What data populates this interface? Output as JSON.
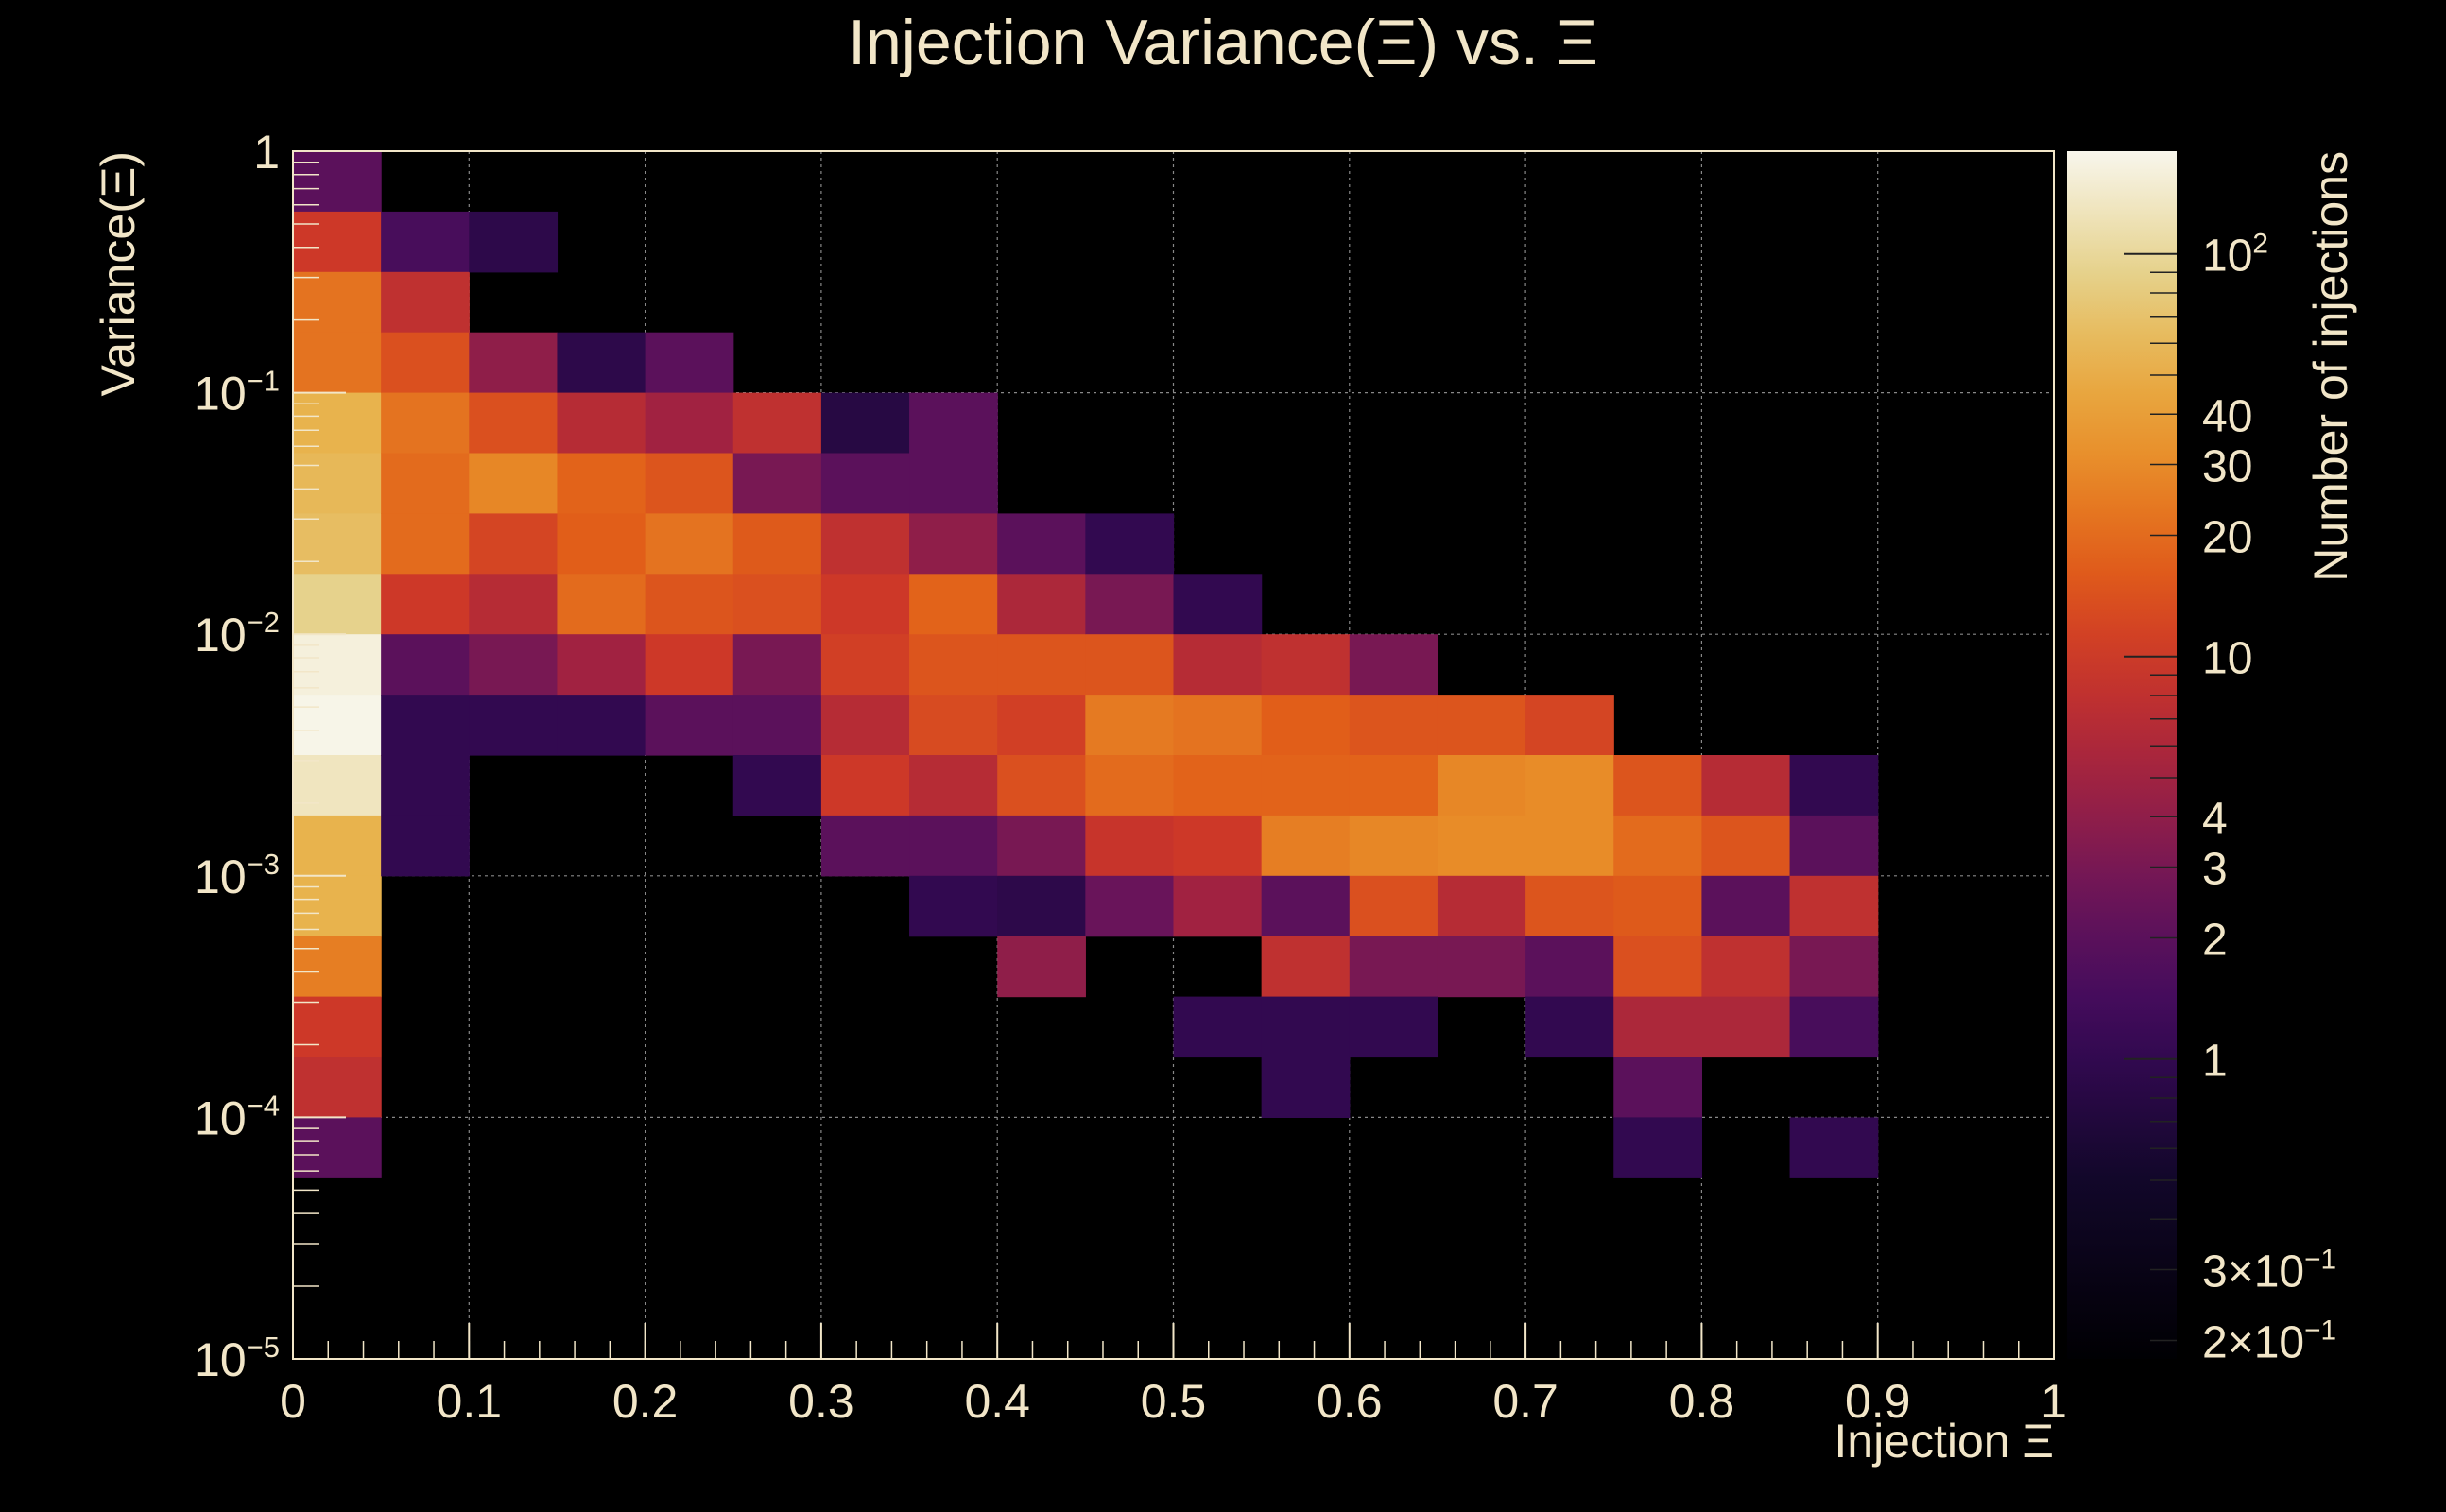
{
  "chart_data": {
    "type": "heatmap",
    "title": "Injection Variance(Ξ) vs. Ξ",
    "xlabel": "Injection Ξ",
    "ylabel": "Variance(Ξ)",
    "colorbar_label": "Number of injections",
    "x_range": [
      0,
      1
    ],
    "x_bin_width": 0.05,
    "y_scale": "log",
    "y_range_log10": [
      -5,
      0
    ],
    "y_bin_width_log10": 0.25,
    "grid": true,
    "x_ticks": [
      {
        "value": 0,
        "label": "0"
      },
      {
        "value": 0.1,
        "label": "0.1"
      },
      {
        "value": 0.2,
        "label": "0.2"
      },
      {
        "value": 0.3,
        "label": "0.3"
      },
      {
        "value": 0.4,
        "label": "0.4"
      },
      {
        "value": 0.5,
        "label": "0.5"
      },
      {
        "value": 0.6,
        "label": "0.6"
      },
      {
        "value": 0.7,
        "label": "0.7"
      },
      {
        "value": 0.8,
        "label": "0.8"
      },
      {
        "value": 0.9,
        "label": "0.9"
      },
      {
        "value": 1,
        "label": "1"
      }
    ],
    "y_ticks": [
      {
        "log10": 0,
        "base": "1",
        "exp": ""
      },
      {
        "log10": -1,
        "base": "10",
        "exp": "−1"
      },
      {
        "log10": -2,
        "base": "10",
        "exp": "−2"
      },
      {
        "log10": -3,
        "base": "10",
        "exp": "−3"
      },
      {
        "log10": -4,
        "base": "10",
        "exp": "−4"
      },
      {
        "log10": -5,
        "base": "10",
        "exp": "−5"
      }
    ],
    "colorbar_range": [
      0.18,
      180
    ],
    "colorbar_ticks": [
      {
        "value": 100,
        "base": "10",
        "exp": "2"
      },
      {
        "value": 40,
        "base": "40",
        "exp": ""
      },
      {
        "value": 30,
        "base": "30",
        "exp": ""
      },
      {
        "value": 20,
        "base": "20",
        "exp": ""
      },
      {
        "value": 10,
        "base": "10",
        "exp": ""
      },
      {
        "value": 4,
        "base": "4",
        "exp": ""
      },
      {
        "value": 3,
        "base": "3",
        "exp": ""
      },
      {
        "value": 2,
        "base": "2",
        "exp": ""
      },
      {
        "value": 1,
        "base": "1",
        "exp": ""
      },
      {
        "value": 0.3,
        "base": "3×10",
        "exp": "−1"
      },
      {
        "value": 0.2,
        "base": "2×10",
        "exp": "−1"
      }
    ],
    "cells": [
      {
        "x": 0,
        "y": 15,
        "v": 2
      },
      {
        "x": 0,
        "y": 14,
        "v": 10
      },
      {
        "x": 0,
        "y": 13,
        "v": 22
      },
      {
        "x": 0,
        "y": 12,
        "v": 22
      },
      {
        "x": 0,
        "y": 11,
        "v": 55
      },
      {
        "x": 0,
        "y": 10,
        "v": 60
      },
      {
        "x": 0,
        "y": 9,
        "v": 65
      },
      {
        "x": 0,
        "y": 8,
        "v": 90
      },
      {
        "x": 0,
        "y": 7,
        "v": 160
      },
      {
        "x": 0,
        "y": 6,
        "v": 175
      },
      {
        "x": 0,
        "y": 5,
        "v": 130
      },
      {
        "x": 0,
        "y": 4,
        "v": 55
      },
      {
        "x": 0,
        "y": 3,
        "v": 55
      },
      {
        "x": 0,
        "y": 2,
        "v": 25
      },
      {
        "x": 0,
        "y": 1,
        "v": 10
      },
      {
        "x": 0,
        "y": 0,
        "v": 8
      },
      {
        "x": 0,
        "y": -1,
        "v": 2
      },
      {
        "x": 1,
        "y": 14,
        "v": 1.5
      },
      {
        "x": 1,
        "y": 13,
        "v": 8
      },
      {
        "x": 1,
        "y": 12,
        "v": 14
      },
      {
        "x": 1,
        "y": 11,
        "v": 22
      },
      {
        "x": 1,
        "y": 10,
        "v": 20
      },
      {
        "x": 1,
        "y": 9,
        "v": 20
      },
      {
        "x": 1,
        "y": 8,
        "v": 10
      },
      {
        "x": 1,
        "y": 7,
        "v": 2
      },
      {
        "x": 1,
        "y": 6,
        "v": 1
      },
      {
        "x": 1,
        "y": 5,
        "v": 1
      },
      {
        "x": 1,
        "y": 4,
        "v": 1
      },
      {
        "x": 2,
        "y": 14,
        "v": 0.9
      },
      {
        "x": 2,
        "y": 12,
        "v": 4
      },
      {
        "x": 2,
        "y": 11,
        "v": 14
      },
      {
        "x": 2,
        "y": 10,
        "v": 28
      },
      {
        "x": 2,
        "y": 9,
        "v": 12
      },
      {
        "x": 2,
        "y": 8,
        "v": 7
      },
      {
        "x": 2,
        "y": 7,
        "v": 3
      },
      {
        "x": 2,
        "y": 6,
        "v": 1
      },
      {
        "x": 3,
        "y": 12,
        "v": 0.9
      },
      {
        "x": 3,
        "y": 11,
        "v": 7
      },
      {
        "x": 3,
        "y": 10,
        "v": 18
      },
      {
        "x": 3,
        "y": 9,
        "v": 17
      },
      {
        "x": 3,
        "y": 8,
        "v": 20
      },
      {
        "x": 3,
        "y": 7,
        "v": 5
      },
      {
        "x": 3,
        "y": 6,
        "v": 1
      },
      {
        "x": 4,
        "y": 12,
        "v": 2
      },
      {
        "x": 4,
        "y": 11,
        "v": 5
      },
      {
        "x": 4,
        "y": 10,
        "v": 15
      },
      {
        "x": 4,
        "y": 9,
        "v": 22
      },
      {
        "x": 4,
        "y": 8,
        "v": 15
      },
      {
        "x": 4,
        "y": 7,
        "v": 10
      },
      {
        "x": 4,
        "y": 6,
        "v": 2
      },
      {
        "x": 5,
        "y": 11,
        "v": 8
      },
      {
        "x": 5,
        "y": 10,
        "v": 3
      },
      {
        "x": 5,
        "y": 9,
        "v": 16
      },
      {
        "x": 5,
        "y": 8,
        "v": 14
      },
      {
        "x": 5,
        "y": 7,
        "v": 3
      },
      {
        "x": 5,
        "y": 6,
        "v": 2
      },
      {
        "x": 5,
        "y": 5,
        "v": 1
      },
      {
        "x": 6,
        "y": 11,
        "v": 0.8
      },
      {
        "x": 6,
        "y": 10,
        "v": 2
      },
      {
        "x": 6,
        "y": 9,
        "v": 8
      },
      {
        "x": 6,
        "y": 8,
        "v": 10
      },
      {
        "x": 6,
        "y": 7,
        "v": 11
      },
      {
        "x": 6,
        "y": 6,
        "v": 7
      },
      {
        "x": 6,
        "y": 5,
        "v": 10
      },
      {
        "x": 6,
        "y": 4,
        "v": 2
      },
      {
        "x": 7,
        "y": 11,
        "v": 2
      },
      {
        "x": 7,
        "y": 10,
        "v": 2
      },
      {
        "x": 7,
        "y": 9,
        "v": 4
      },
      {
        "x": 7,
        "y": 8,
        "v": 18
      },
      {
        "x": 7,
        "y": 7,
        "v": 15
      },
      {
        "x": 7,
        "y": 6,
        "v": 13
      },
      {
        "x": 7,
        "y": 5,
        "v": 7
      },
      {
        "x": 7,
        "y": 4,
        "v": 2
      },
      {
        "x": 7,
        "y": 3,
        "v": 1
      },
      {
        "x": 8,
        "y": 9,
        "v": 2
      },
      {
        "x": 8,
        "y": 8,
        "v": 6
      },
      {
        "x": 8,
        "y": 7,
        "v": 15
      },
      {
        "x": 8,
        "y": 6,
        "v": 11
      },
      {
        "x": 8,
        "y": 5,
        "v": 14
      },
      {
        "x": 8,
        "y": 4,
        "v": 3
      },
      {
        "x": 8,
        "y": 3,
        "v": 0.9
      },
      {
        "x": 8,
        "y": 2,
        "v": 4
      },
      {
        "x": 9,
        "y": 9,
        "v": 1
      },
      {
        "x": 9,
        "y": 8,
        "v": 3
      },
      {
        "x": 9,
        "y": 7,
        "v": 15
      },
      {
        "x": 9,
        "y": 6,
        "v": 24
      },
      {
        "x": 9,
        "y": 5,
        "v": 20
      },
      {
        "x": 9,
        "y": 4,
        "v": 9
      },
      {
        "x": 9,
        "y": 3,
        "v": 2.5
      },
      {
        "x": 10,
        "y": 8,
        "v": 1
      },
      {
        "x": 10,
        "y": 7,
        "v": 7
      },
      {
        "x": 10,
        "y": 6,
        "v": 22
      },
      {
        "x": 10,
        "y": 5,
        "v": 18
      },
      {
        "x": 10,
        "y": 4,
        "v": 10
      },
      {
        "x": 10,
        "y": 3,
        "v": 5
      },
      {
        "x": 10,
        "y": 1,
        "v": 1
      },
      {
        "x": 11,
        "y": 7,
        "v": 8
      },
      {
        "x": 11,
        "y": 6,
        "v": 17
      },
      {
        "x": 11,
        "y": 5,
        "v": 18
      },
      {
        "x": 11,
        "y": 4,
        "v": 25
      },
      {
        "x": 11,
        "y": 3,
        "v": 2
      },
      {
        "x": 11,
        "y": 2,
        "v": 8
      },
      {
        "x": 11,
        "y": 1,
        "v": 1
      },
      {
        "x": 11,
        "y": 0,
        "v": 1
      },
      {
        "x": 12,
        "y": 7,
        "v": 3
      },
      {
        "x": 12,
        "y": 6,
        "v": 15
      },
      {
        "x": 12,
        "y": 5,
        "v": 18
      },
      {
        "x": 12,
        "y": 4,
        "v": 28
      },
      {
        "x": 12,
        "y": 3,
        "v": 14
      },
      {
        "x": 12,
        "y": 2,
        "v": 3
      },
      {
        "x": 12,
        "y": 1,
        "v": 1
      },
      {
        "x": 13,
        "y": 6,
        "v": 15
      },
      {
        "x": 13,
        "y": 5,
        "v": 28
      },
      {
        "x": 13,
        "y": 4,
        "v": 30
      },
      {
        "x": 13,
        "y": 3,
        "v": 7
      },
      {
        "x": 13,
        "y": 2,
        "v": 3
      },
      {
        "x": 14,
        "y": 6,
        "v": 12
      },
      {
        "x": 14,
        "y": 5,
        "v": 30
      },
      {
        "x": 14,
        "y": 4,
        "v": 30
      },
      {
        "x": 14,
        "y": 3,
        "v": 15
      },
      {
        "x": 14,
        "y": 2,
        "v": 2
      },
      {
        "x": 14,
        "y": 1,
        "v": 1
      },
      {
        "x": 15,
        "y": 5,
        "v": 15
      },
      {
        "x": 15,
        "y": 4,
        "v": 20
      },
      {
        "x": 15,
        "y": 3,
        "v": 16
      },
      {
        "x": 15,
        "y": 2,
        "v": 14
      },
      {
        "x": 15,
        "y": 1,
        "v": 6
      },
      {
        "x": 15,
        "y": 0,
        "v": 2
      },
      {
        "x": 15,
        "y": -1,
        "v": 1
      },
      {
        "x": 16,
        "y": 5,
        "v": 7
      },
      {
        "x": 16,
        "y": 4,
        "v": 15
      },
      {
        "x": 16,
        "y": 3,
        "v": 2
      },
      {
        "x": 16,
        "y": 2,
        "v": 8
      },
      {
        "x": 16,
        "y": 1,
        "v": 6
      },
      {
        "x": 17,
        "y": 5,
        "v": 1
      },
      {
        "x": 17,
        "y": 4,
        "v": 2
      },
      {
        "x": 17,
        "y": 3,
        "v": 8
      },
      {
        "x": 17,
        "y": 2,
        "v": 3
      },
      {
        "x": 17,
        "y": 1,
        "v": 1.5
      },
      {
        "x": 17,
        "y": -1,
        "v": 1
      }
    ]
  }
}
